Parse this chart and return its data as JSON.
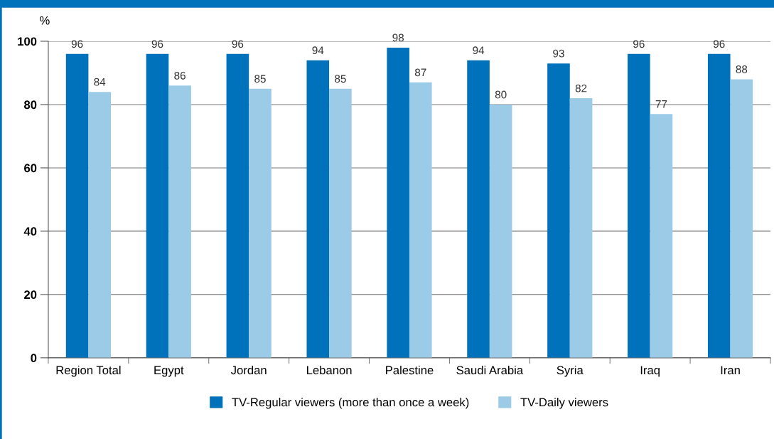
{
  "chart_data": {
    "type": "bar",
    "ylabel": "%",
    "categories": [
      "Region Total",
      "Egypt",
      "Jordan",
      "Lebanon",
      "Palestine",
      "Saudi Arabia",
      "Syria",
      "Iraq",
      "Iran"
    ],
    "series": [
      {
        "name": "TV-Regular viewers (more than once a week)",
        "color": "#0072bc",
        "values": [
          96,
          96,
          96,
          94,
          98,
          94,
          93,
          96,
          96
        ]
      },
      {
        "name": "TV-Daily viewers",
        "color": "#9ccbe8",
        "values": [
          84,
          86,
          85,
          85,
          87,
          80,
          82,
          77,
          88
        ]
      }
    ],
    "ylim": [
      0,
      100
    ],
    "yticks": [
      0,
      20,
      40,
      60,
      80,
      100
    ],
    "grid": "y",
    "legend": "bottom",
    "data_labels": true
  }
}
